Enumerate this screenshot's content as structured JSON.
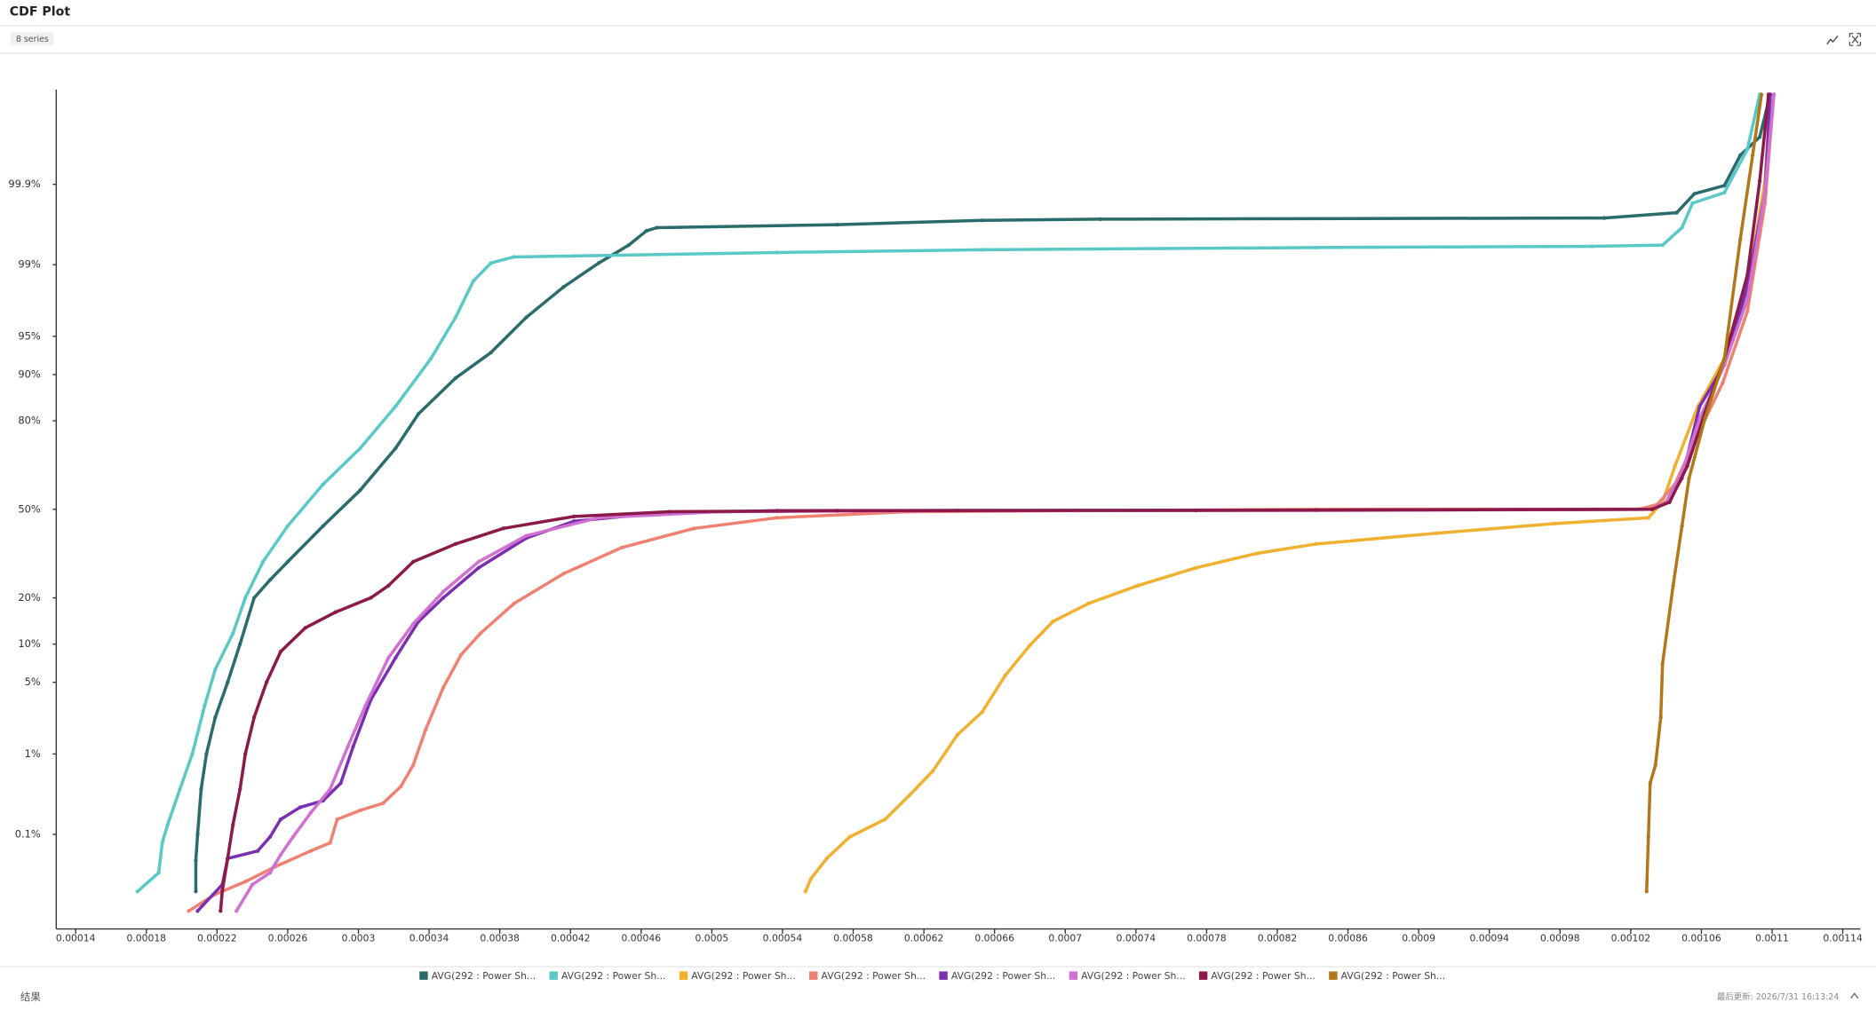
{
  "header": {
    "title": "CDF Plot",
    "badge": "8 series"
  },
  "chart_data": {
    "type": "line",
    "y_scale": "probability",
    "markers": true,
    "legend": "bottom",
    "xlim": [
      0.000129,
      0.00115
    ],
    "xticks": [
      0.00014,
      0.00018,
      0.00022,
      0.00026,
      0.0003,
      0.00034,
      0.00038,
      0.00042,
      0.00046,
      0.0005,
      0.00054,
      0.00058,
      0.00062,
      0.00066,
      0.0007,
      0.00074,
      0.00078,
      0.00082,
      0.00086,
      0.0009,
      0.00094,
      0.00098,
      0.00102,
      0.00106,
      0.0011,
      0.00114
    ],
    "ylim": [
      0.0033,
      99.9967
    ],
    "yticks": [
      {
        "value": 0.1,
        "label": "0.1%"
      },
      {
        "value": 1,
        "label": "1%"
      },
      {
        "value": 5,
        "label": "5%"
      },
      {
        "value": 10,
        "label": "10%"
      },
      {
        "value": 20,
        "label": "20%"
      },
      {
        "value": 50,
        "label": "50%"
      },
      {
        "value": 80,
        "label": "80%"
      },
      {
        "value": 90,
        "label": "90%"
      },
      {
        "value": 95,
        "label": "95%"
      },
      {
        "value": 99,
        "label": "99%"
      },
      {
        "value": 99.9,
        "label": "99.9%"
      }
    ],
    "series": [
      {
        "name": "AVG(292 : Power Sh...",
        "color": "#2a6b6b",
        "x": [
          0.000208,
          0.000208,
          0.000209,
          0.000211,
          0.000214,
          0.000219,
          0.000226,
          0.000233,
          0.000241,
          0.00025,
          0.00026,
          0.00028,
          0.000301,
          0.000321,
          0.000334,
          0.000355,
          0.000375,
          0.000395,
          0.000416,
          0.000436,
          0.000453,
          0.000463,
          0.000469,
          0.000571,
          0.000653,
          0.00072,
          0.001005,
          0.001046,
          0.001056,
          0.001073,
          0.001082,
          0.001093,
          0.001099
        ],
        "values": [
          0.014,
          0.042,
          0.1,
          0.39,
          1,
          2.4,
          5,
          10,
          20,
          25.1,
          30.9,
          43.7,
          57.2,
          71.9,
          81.8,
          89.4,
          93.2,
          96.6,
          98.27,
          99.04,
          99.4,
          99.595,
          99.63,
          99.66,
          99.7,
          99.71,
          99.72,
          99.76,
          99.865,
          99.896,
          99.962,
          99.98,
          99.996
        ]
      },
      {
        "name": "AVG(292 : Power Sh...",
        "color": "#5bc8c8",
        "x": [
          0.000175,
          0.000187,
          0.000189,
          0.000192,
          0.000199,
          0.000206,
          0.000213,
          0.000219,
          0.000229,
          0.000236,
          0.000246,
          0.00026,
          0.00028,
          0.000301,
          0.000321,
          0.000341,
          0.000355,
          0.000365,
          0.000375,
          0.000388,
          0.000422,
          0.000537,
          0.000653,
          0.000842,
          0.000998,
          0.001038,
          0.001049,
          0.001055,
          0.001073,
          0.001086,
          0.001093
        ],
        "values": [
          0.014,
          0.0275,
          0.076,
          0.135,
          0.39,
          1,
          3.1,
          6.4,
          11.9,
          20,
          30.9,
          43.7,
          59.4,
          71.9,
          83.6,
          92.4,
          96.6,
          98.5,
          99.04,
          99.18,
          99.2,
          99.27,
          99.32,
          99.36,
          99.38,
          99.4,
          99.63,
          99.82,
          99.87,
          99.969,
          99.996
        ]
      },
      {
        "name": "AVG(292 : Power Sh...",
        "color": "#f0b030",
        "x": [
          0.000553,
          0.000556,
          0.000565,
          0.000578,
          0.000598,
          0.000612,
          0.000625,
          0.000639,
          0.000653,
          0.000666,
          0.00068,
          0.000693,
          0.000713,
          0.000741,
          0.000774,
          0.000808,
          0.000842,
          0.00091,
          0.000977,
          0.00103,
          0.001038,
          0.001045,
          0.001058,
          0.001073,
          0.001086,
          0.001096,
          0.001099
        ],
        "values": [
          0.014,
          0.022,
          0.045,
          0.092,
          0.16,
          0.33,
          0.64,
          1.6,
          2.7,
          5.7,
          9.8,
          14.3,
          18.5,
          23.4,
          28.9,
          33.7,
          37.1,
          41,
          44.6,
          46.8,
          52.7,
          65.9,
          83.6,
          92.4,
          98.27,
          99.91,
          99.996
        ]
      },
      {
        "name": "AVG(292 : Power Sh...",
        "color": "#f08070",
        "x": [
          0.000204,
          0.000219,
          0.000236,
          0.000253,
          0.000273,
          0.000284,
          0.000288,
          0.000301,
          0.000314,
          0.000324,
          0.000331,
          0.000338,
          0.000348,
          0.000358,
          0.000369,
          0.000388,
          0.000416,
          0.000449,
          0.00049,
          0.000537,
          0.000612,
          0.000707,
          0.000842,
          0.001025,
          0.001035,
          0.001045,
          0.001059,
          0.001072,
          0.001086,
          0.001096,
          0.001101
        ],
        "values": [
          0.0067,
          0.0126,
          0.02,
          0.034,
          0.058,
          0.076,
          0.16,
          0.21,
          0.26,
          0.42,
          0.75,
          1.8,
          4.5,
          8.3,
          11.9,
          18.5,
          27,
          35.8,
          42.8,
          46.8,
          49.1,
          49.5,
          50,
          50.1,
          51.8,
          59.4,
          77.3,
          88.5,
          97,
          99.82,
          99.996
        ]
      },
      {
        "name": "AVG(292 : Power Sh...",
        "color": "#7b2fb0",
        "x": [
          0.000209,
          0.000223,
          0.000226,
          0.000243,
          0.00025,
          0.000256,
          0.000267,
          0.00028,
          0.00029,
          0.000297,
          0.000307,
          0.000321,
          0.000334,
          0.000348,
          0.000368,
          0.000395,
          0.000422,
          0.00047,
          0.000537,
          0.000639,
          0.000842,
          0.001032,
          0.001041,
          0.001049,
          0.001059,
          0.001073,
          0.001086,
          0.001096,
          0.001099
        ],
        "values": [
          0.0067,
          0.018,
          0.045,
          0.058,
          0.092,
          0.16,
          0.23,
          0.28,
          0.46,
          1.2,
          3.5,
          7.9,
          14.3,
          20,
          28.9,
          39.2,
          45.5,
          48.6,
          49.5,
          49.6,
          49.7,
          50,
          52.7,
          61.6,
          83.6,
          91.5,
          98.27,
          99.87,
          99.996
        ]
      },
      {
        "name": "AVG(292 : Power Sh...",
        "color": "#d070d0",
        "x": [
          0.000231,
          0.00024,
          0.00025,
          0.000256,
          0.000263,
          0.000273,
          0.000284,
          0.000294,
          0.000304,
          0.000317,
          0.000331,
          0.000348,
          0.000368,
          0.000395,
          0.000436,
          0.000504,
          0.000639,
          0.000842,
          0.001032,
          0.00104,
          0.001049,
          0.001059,
          0.001073,
          0.001086,
          0.001096,
          0.001101
        ],
        "values": [
          0.0067,
          0.018,
          0.0275,
          0.051,
          0.092,
          0.195,
          0.39,
          1.2,
          3.1,
          7.9,
          13.8,
          21.7,
          30.9,
          40.1,
          46.8,
          49.1,
          49.5,
          49.6,
          50,
          52.7,
          63.8,
          80.6,
          91.5,
          97.7,
          99.87,
          99.996
        ]
      },
      {
        "name": "AVG(292 : Power Sh...",
        "color": "#8b1a4a",
        "x": [
          0.000222,
          0.000223,
          0.000226,
          0.000229,
          0.000233,
          0.000236,
          0.000241,
          0.000248,
          0.000256,
          0.00027,
          0.000287,
          0.000307,
          0.000317,
          0.000331,
          0.000355,
          0.000382,
          0.000422,
          0.000476,
          0.000571,
          0.000774,
          0.001032,
          0.001042,
          0.001052,
          0.001062,
          0.001073,
          0.001086,
          0.001093,
          0.001098
        ],
        "values": [
          0.0067,
          0.0145,
          0.045,
          0.135,
          0.39,
          1,
          2.4,
          5,
          8.8,
          13,
          16.4,
          20,
          23.4,
          30.9,
          37.1,
          42.8,
          47.3,
          49.1,
          49.5,
          49.6,
          50,
          52.7,
          65.9,
          82.1,
          92.4,
          98.7,
          99.91,
          99.996
        ]
      },
      {
        "name": "AVG(292 : Power Sh...",
        "color": "#b07818",
        "x": [
          0.001029,
          0.00103,
          0.001031,
          0.001034,
          0.001037,
          0.001038,
          0.001044,
          0.001049,
          0.001053,
          0.001062,
          0.001073,
          0.001082,
          0.001089,
          0.001094
        ],
        "values": [
          0.014,
          0.092,
          0.46,
          0.75,
          2.4,
          7.1,
          23.4,
          43.7,
          61.6,
          80.6,
          92.4,
          99.49,
          99.962,
          99.996
        ]
      }
    ]
  },
  "footer": {
    "left": "结果",
    "updated": "最后更新: 2026/7/31 16:13:24"
  }
}
